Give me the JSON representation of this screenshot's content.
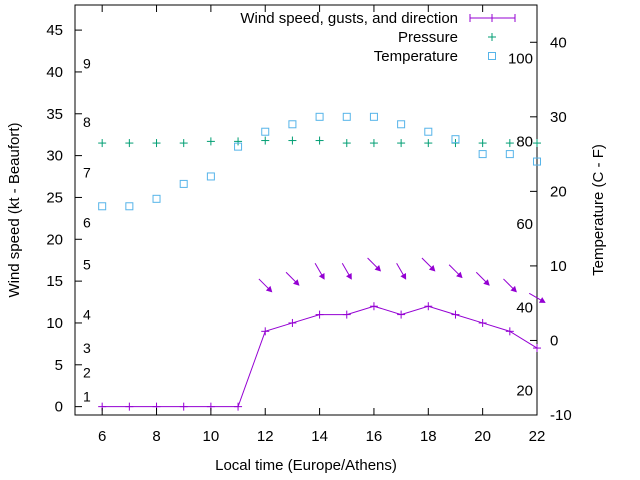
{
  "chart_data": {
    "type": "line",
    "xlabel": "Local time (Europe/Athens)",
    "ylabel_left": "Wind speed (kt - Beaufort)",
    "ylabel_right": "Temperature (C - F)",
    "xlim": [
      5,
      22
    ],
    "ylim_left": [
      -1,
      48
    ],
    "ylim_right": [
      -10,
      45
    ],
    "x_ticks": [
      6,
      8,
      10,
      12,
      14,
      16,
      18,
      20,
      22
    ],
    "y_ticks_left": [
      0,
      5,
      10,
      15,
      20,
      25,
      30,
      35,
      40,
      45
    ],
    "y_ticks_right": [
      -10,
      0,
      10,
      20,
      30,
      40
    ],
    "beaufort_labels": [
      {
        "label": "1",
        "kt": 1.2
      },
      {
        "label": "2",
        "kt": 4.1
      },
      {
        "label": "3",
        "kt": 7.0
      },
      {
        "label": "4",
        "kt": 11.0
      },
      {
        "label": "5",
        "kt": 17.0
      },
      {
        "label": "6",
        "kt": 22.0
      },
      {
        "label": "7",
        "kt": 28.0
      },
      {
        "label": "8",
        "kt": 34.0
      },
      {
        "label": "9",
        "kt": 41.0
      }
    ],
    "fahrenheit_labels": [
      {
        "label": "20",
        "c": -6.7
      },
      {
        "label": "40",
        "c": 4.4
      },
      {
        "label": "60",
        "c": 15.6
      },
      {
        "label": "80",
        "c": 26.7
      },
      {
        "label": "100",
        "c": 37.8
      }
    ],
    "legend_position": "top-right",
    "series": [
      {
        "name": "Wind speed, gusts, and direction",
        "color": "#9400d3",
        "style": "line-points",
        "axis": "left",
        "x": [
          6,
          7,
          8,
          9,
          10,
          11,
          12,
          13,
          14,
          15,
          16,
          17,
          18,
          19,
          20,
          21,
          22
        ],
        "values": [
          0,
          0,
          0,
          0,
          0,
          0,
          9,
          10,
          11,
          11,
          12,
          11,
          12,
          11,
          10,
          9,
          7
        ]
      },
      {
        "name": "Pressure",
        "color": "#009e73",
        "style": "points-plus",
        "axis": "left",
        "x": [
          6,
          7,
          8,
          9,
          10,
          11,
          12,
          13,
          14,
          15,
          16,
          17,
          18,
          19,
          20,
          21,
          22
        ],
        "values": [
          31.5,
          31.5,
          31.5,
          31.5,
          31.7,
          31.7,
          31.8,
          31.8,
          31.8,
          31.5,
          31.5,
          31.5,
          31.5,
          31.5,
          31.5,
          31.5,
          31.5
        ]
      },
      {
        "name": "Temperature",
        "color": "#56b4e9",
        "style": "points-square",
        "axis": "right",
        "x": [
          6,
          7,
          8,
          9,
          10,
          11,
          12,
          13,
          14,
          15,
          16,
          17,
          18,
          19,
          20,
          21,
          22
        ],
        "values": [
          18,
          18,
          19,
          21,
          22,
          26,
          28,
          29,
          30,
          30,
          30,
          29,
          28,
          27,
          25,
          25,
          24
        ]
      }
    ],
    "wind_direction": {
      "color": "#9400d3",
      "x": [
        12,
        13,
        14,
        15,
        16,
        17,
        18,
        19,
        20,
        21,
        22
      ],
      "y": [
        14.5,
        15.3,
        16.2,
        16.2,
        17.0,
        16.2,
        17.0,
        16.2,
        15.3,
        14.5,
        13.0
      ],
      "direction_deg": [
        315,
        315,
        330,
        330,
        315,
        330,
        315,
        315,
        315,
        315,
        300
      ]
    }
  }
}
